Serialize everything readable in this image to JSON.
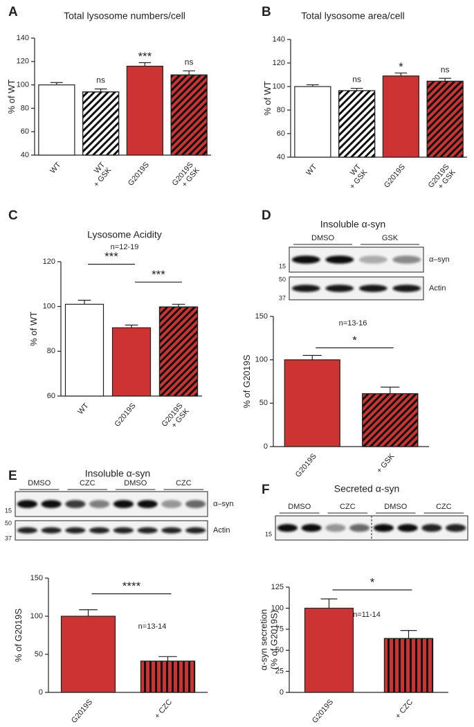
{
  "chart_data": [
    {
      "type": "bar",
      "panel": "A",
      "title": "Total lysosome numbers/cell",
      "ylabel": [
        "% of WT"
      ],
      "categories": [
        [
          "WT"
        ],
        [
          "WT",
          "+ GSK"
        ],
        [
          "G2019S"
        ],
        [
          "G2019S",
          "+ GSK"
        ]
      ],
      "values": [
        100,
        94,
        116,
        108.5
      ],
      "errors": [
        2,
        2.5,
        3,
        3.5
      ],
      "colors": [
        "#ffffff",
        "#ffffff",
        "#cc3333",
        "#cc3333"
      ],
      "patterns": [
        null,
        "diagonal",
        null,
        "diagonal"
      ],
      "value_annotations": [
        null,
        "ns",
        "***",
        "ns"
      ],
      "ylim": [
        40,
        140
      ],
      "yticks": [
        40,
        60,
        80,
        100,
        120,
        140
      ]
    },
    {
      "type": "bar",
      "panel": "B",
      "title": "Total lysosome area/cell",
      "ylabel": [
        "% of WT"
      ],
      "categories": [
        [
          "WT"
        ],
        [
          "WT",
          "+ GSK"
        ],
        [
          "G2019S"
        ],
        [
          "G2019S",
          "+ GSK"
        ]
      ],
      "values": [
        100,
        96.5,
        109,
        104.5
      ],
      "errors": [
        1.5,
        2,
        2.5,
        2.5
      ],
      "colors": [
        "#ffffff",
        "#ffffff",
        "#cc3333",
        "#cc3333"
      ],
      "patterns": [
        null,
        "diagonal",
        null,
        "diagonal"
      ],
      "value_annotations": [
        null,
        "ns",
        "*",
        "ns"
      ],
      "ylim": [
        40,
        140
      ],
      "yticks": [
        40,
        60,
        80,
        100,
        120,
        140
      ]
    },
    {
      "type": "bar",
      "panel": "C",
      "title": "Lysosome Acidity",
      "note": "n=12-19",
      "ylabel": [
        "% of WT"
      ],
      "categories": [
        [
          "WT"
        ],
        [
          "G2019S"
        ],
        [
          "G2019S",
          "+ GSK"
        ]
      ],
      "values": [
        101,
        90.5,
        99.8
      ],
      "errors": [
        1.8,
        1.2,
        1.2
      ],
      "colors": [
        "#ffffff",
        "#cc3333",
        "#cc3333"
      ],
      "patterns": [
        null,
        null,
        "diagonal"
      ],
      "brackets": [
        {
          "pair": [
            0,
            1
          ],
          "label": "***"
        },
        {
          "pair": [
            1,
            2
          ],
          "label": "***"
        }
      ],
      "ylim": [
        60,
        120
      ],
      "yticks": [
        60,
        80,
        100,
        120
      ]
    },
    {
      "type": "bar",
      "panel": "D",
      "title": "Insoluble α-syn",
      "note": "n=13-16",
      "ylabel": [
        "% of G2019S"
      ],
      "blot": {
        "lanes": [
          "DMSO",
          "GSK"
        ],
        "rows": [
          {
            "label": "α–syn",
            "markers": [
              15
            ]
          },
          {
            "label": "Actin",
            "markers": [
              50,
              37
            ]
          }
        ]
      },
      "categories": [
        [
          "G2019S"
        ],
        [
          "+ GSK"
        ]
      ],
      "values": [
        100,
        61
      ],
      "errors": [
        5,
        7.5
      ],
      "colors": [
        "#cc3333",
        "#cc3333"
      ],
      "patterns": [
        null,
        "diagonal"
      ],
      "brackets": [
        {
          "pair": [
            0,
            1
          ],
          "label": "*"
        }
      ],
      "ylim": [
        0,
        150
      ],
      "yticks": [
        0,
        50,
        100,
        150
      ]
    },
    {
      "type": "bar",
      "panel": "E",
      "title": "Insoluble α-syn",
      "note": "n=13-14",
      "ylabel": [
        "% of G2019S"
      ],
      "blot": {
        "lanes": [
          "DMSO",
          "CZC",
          "DMSO",
          "CZC"
        ],
        "rows": [
          {
            "label": "α–syn",
            "markers": [
              15
            ]
          },
          {
            "label": "Actin",
            "markers": [
              50,
              37
            ]
          }
        ]
      },
      "categories": [
        [
          "G2019S"
        ],
        [
          "+ CZC"
        ]
      ],
      "values": [
        100,
        41
      ],
      "errors": [
        8.5,
        6
      ],
      "colors": [
        "#cc3333",
        "#cc3333"
      ],
      "patterns": [
        null,
        "vertical"
      ],
      "brackets": [
        {
          "pair": [
            0,
            1
          ],
          "label": "****"
        }
      ],
      "ylim": [
        0,
        150
      ],
      "yticks": [
        0,
        50,
        100,
        150
      ]
    },
    {
      "type": "bar",
      "panel": "F",
      "title": "Secreted α-syn",
      "note": "n=11-14",
      "ylabel": [
        "α-syn secretion",
        "(% of G2019S)"
      ],
      "blot": {
        "lanes": [
          "DMSO",
          "CZC",
          "DMSO",
          "CZC"
        ],
        "rows": [
          {
            "markers": [
              15
            ]
          }
        ]
      },
      "categories": [
        [
          "G2019S"
        ],
        [
          "+ CZC"
        ]
      ],
      "values": [
        100,
        64
      ],
      "errors": [
        11,
        9.5
      ],
      "colors": [
        "#cc3333",
        "#cc3333"
      ],
      "patterns": [
        null,
        "vertical"
      ],
      "brackets": [
        {
          "pair": [
            0,
            1
          ],
          "label": "*"
        }
      ],
      "ylim": [
        0,
        125
      ],
      "yticks": [
        0,
        25,
        50,
        75,
        100,
        125
      ]
    }
  ]
}
